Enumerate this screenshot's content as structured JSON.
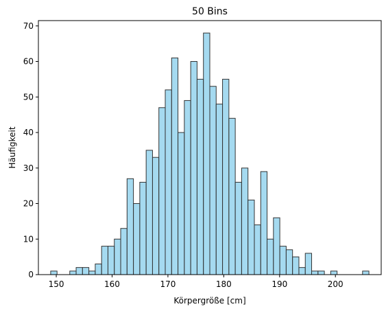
{
  "chart_data": {
    "type": "bar",
    "title": "50 Bins",
    "xlabel": "Körpergröße [cm]",
    "ylabel": "Häufigkeit",
    "xlim": [
      146.8,
      208.2
    ],
    "ylim": [
      0,
      71.5
    ],
    "x_ticks": [
      150,
      160,
      170,
      180,
      190,
      200
    ],
    "y_ticks": [
      0,
      10,
      20,
      30,
      40,
      50,
      60,
      70
    ],
    "bin_start": 149.0,
    "bin_width": 1.14,
    "values": [
      1,
      0,
      0,
      1,
      2,
      2,
      1,
      3,
      8,
      8,
      10,
      13,
      27,
      20,
      26,
      35,
      33,
      47,
      52,
      61,
      40,
      49,
      60,
      55,
      68,
      53,
      48,
      55,
      44,
      26,
      30,
      21,
      14,
      29,
      10,
      16,
      8,
      7,
      5,
      2,
      6,
      1,
      1,
      0,
      1,
      0,
      0,
      0,
      0,
      1
    ],
    "bar_color": "#87ceeb",
    "bar_edge_color": "#333333",
    "grid": false
  }
}
